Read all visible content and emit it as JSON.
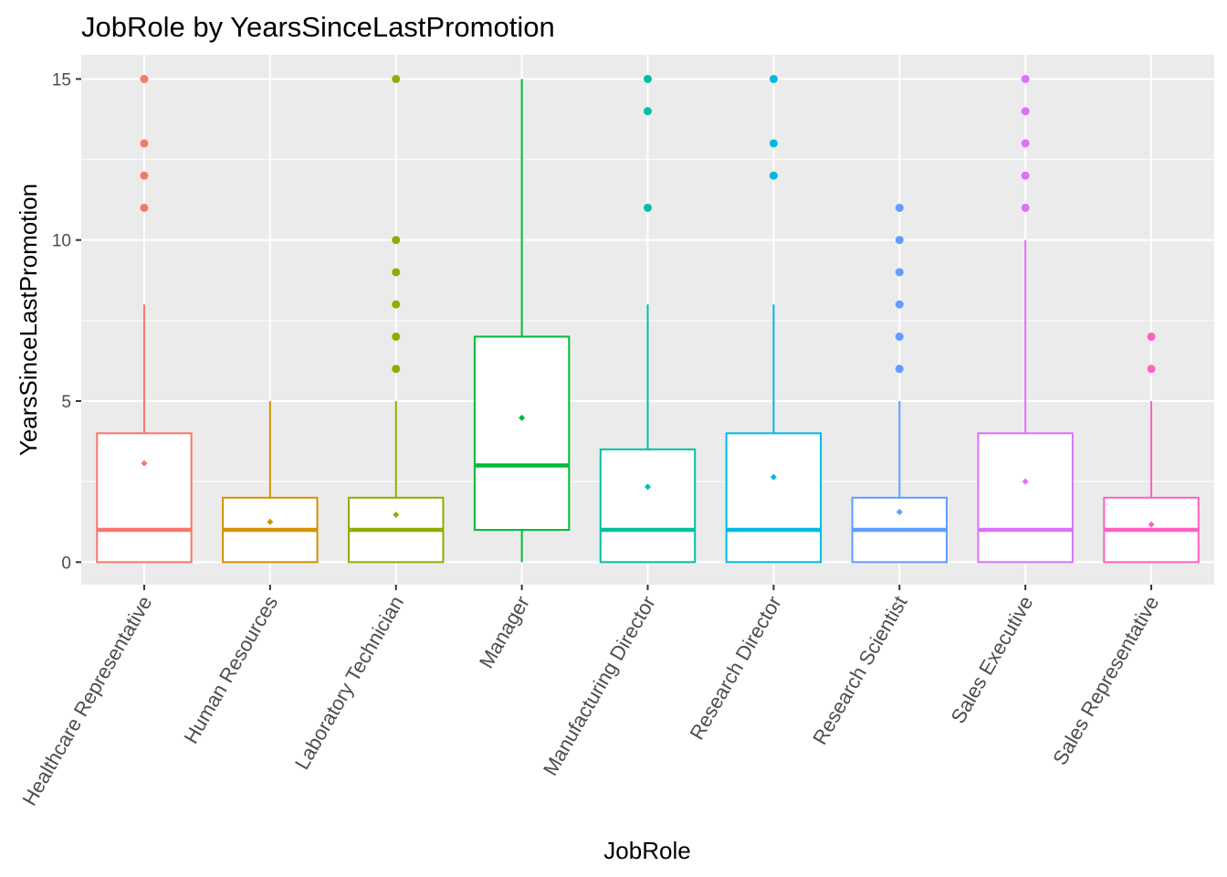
{
  "chart_data": {
    "type": "boxplot",
    "title": "JobRole by YearsSinceLastPromotion",
    "xlabel": "JobRole",
    "ylabel": "YearsSinceLastPromotion",
    "ylim": [
      -0.7,
      15.75
    ],
    "yticks": [
      0,
      5,
      10,
      15
    ],
    "grid": true,
    "legend": "none",
    "categories": [
      "Healthcare Representative",
      "Human Resources",
      "Laboratory Technician",
      "Manager",
      "Manufacturing Director",
      "Research Director",
      "Research Scientist",
      "Sales Executive",
      "Sales Representative"
    ],
    "boxes": [
      {
        "category": "Healthcare Representative",
        "color": "#F8766D",
        "whisker_low": 0,
        "q1": 0,
        "median": 1,
        "q3": 4,
        "whisker_high": 8,
        "mean": 3.07,
        "outliers": [
          11,
          12,
          13,
          15
        ]
      },
      {
        "category": "Human Resources",
        "color": "#D39200",
        "whisker_low": 0,
        "q1": 0,
        "median": 1,
        "q3": 2,
        "whisker_high": 5,
        "mean": 1.25,
        "outliers": []
      },
      {
        "category": "Laboratory Technician",
        "color": "#93AA00",
        "whisker_low": 0,
        "q1": 0,
        "median": 1,
        "q3": 2,
        "whisker_high": 5,
        "mean": 1.47,
        "outliers": [
          6,
          7,
          8,
          9,
          10,
          15
        ]
      },
      {
        "category": "Manager",
        "color": "#00BA38",
        "whisker_low": 0,
        "q1": 1,
        "median": 3,
        "q3": 7,
        "whisker_high": 15,
        "mean": 4.48,
        "outliers": []
      },
      {
        "category": "Manufacturing Director",
        "color": "#00C19F",
        "whisker_low": 0,
        "q1": 0,
        "median": 1,
        "q3": 3.5,
        "whisker_high": 8,
        "mean": 2.34,
        "outliers": [
          11,
          14,
          15
        ]
      },
      {
        "category": "Research Director",
        "color": "#00B9E3",
        "whisker_low": 0,
        "q1": 0,
        "median": 1,
        "q3": 4,
        "whisker_high": 8,
        "mean": 2.64,
        "outliers": [
          12,
          13,
          15
        ]
      },
      {
        "category": "Research Scientist",
        "color": "#619CFF",
        "whisker_low": 0,
        "q1": 0,
        "median": 1,
        "q3": 2,
        "whisker_high": 5,
        "mean": 1.56,
        "outliers": [
          6,
          7,
          8,
          9,
          10,
          11
        ]
      },
      {
        "category": "Sales Executive",
        "color": "#DB72FB",
        "whisker_low": 0,
        "q1": 0,
        "median": 1,
        "q3": 4,
        "whisker_high": 10,
        "mean": 2.5,
        "outliers": [
          11,
          12,
          13,
          14,
          15
        ]
      },
      {
        "category": "Sales Representative",
        "color": "#FF61C3",
        "whisker_low": 0,
        "q1": 0,
        "median": 1,
        "q3": 2,
        "whisker_high": 5,
        "mean": 1.17,
        "outliers": [
          6,
          7
        ]
      }
    ]
  }
}
